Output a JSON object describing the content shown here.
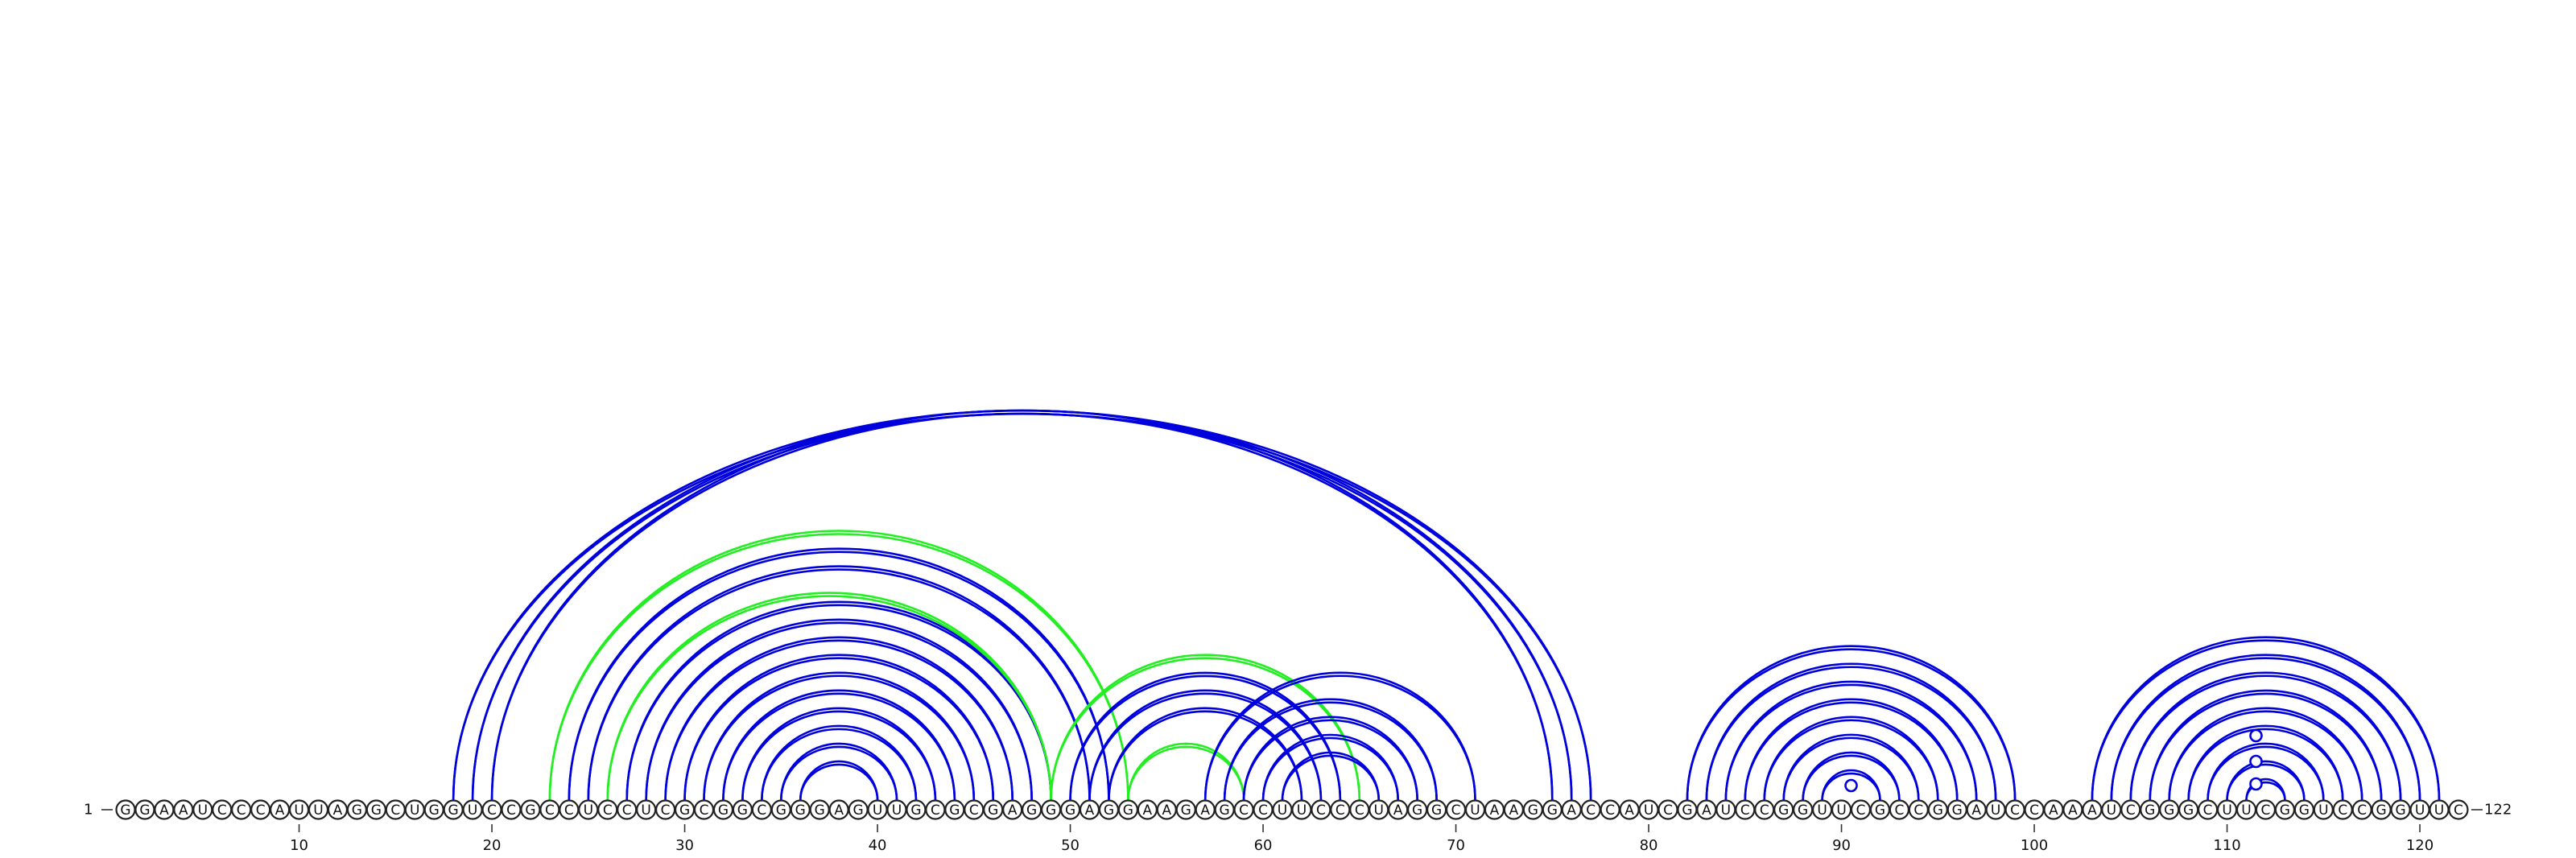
{
  "sequence": "GGAAUCCCAUUAGGCUGGUCCGCCUCCUCGCGGCGGGAGUUGCGCGAGGGAGGAAGAGCCUUCCCUAGGCUAAGGACCAUCGAUCCGGUUCGCCGGAUCCAAAUCGGGCUUCGGUCCGGUUC",
  "start_label": "1",
  "end_label": "122",
  "ticks": [
    "10",
    "20",
    "30",
    "40",
    "50",
    "60",
    "70",
    "80",
    "90",
    "100",
    "110",
    "120"
  ],
  "colors": {
    "primary_arc": "#0000dd",
    "pseudoknot_arc": "#22ee22",
    "outline": "#222222"
  },
  "arc_groups": [
    {
      "color": "primary_arc",
      "pairs": [
        [
          18,
          77
        ],
        [
          19,
          76
        ],
        [
          20,
          75
        ]
      ]
    },
    {
      "color": "primary_arc",
      "pairs": [
        [
          24,
          52
        ],
        [
          25,
          51
        ],
        [
          27,
          49
        ],
        [
          28,
          48
        ],
        [
          29,
          47
        ],
        [
          30,
          46
        ],
        [
          31,
          45
        ],
        [
          32,
          44
        ],
        [
          33,
          43
        ],
        [
          34,
          42
        ],
        [
          35,
          41
        ],
        [
          36,
          40
        ]
      ]
    },
    {
      "color": "pseudoknot_arc",
      "pairs": [
        [
          23,
          53
        ],
        [
          26,
          49
        ],
        [
          49,
          65
        ],
        [
          53,
          59
        ]
      ]
    },
    {
      "color": "primary_arc",
      "pairs": [
        [
          50,
          64
        ],
        [
          51,
          63
        ],
        [
          52,
          62
        ],
        [
          57,
          71
        ],
        [
          58,
          69
        ],
        [
          59,
          68
        ],
        [
          60,
          67
        ],
        [
          61,
          66
        ]
      ]
    },
    {
      "color": "primary_arc",
      "pairs": [
        [
          82,
          99
        ],
        [
          83,
          98
        ],
        [
          84,
          97
        ],
        [
          85,
          96
        ],
        [
          86,
          95
        ],
        [
          87,
          94
        ],
        [
          88,
          93
        ],
        [
          89,
          92
        ]
      ]
    },
    {
      "color": "primary_arc",
      "pairs": [
        [
          103,
          121
        ],
        [
          104,
          120
        ],
        [
          105,
          119
        ],
        [
          106,
          118
        ],
        [
          107,
          117
        ],
        [
          108,
          116
        ],
        [
          109,
          115
        ],
        [
          110,
          114
        ],
        [
          111,
          113
        ]
      ]
    }
  ],
  "loop_markers": [
    90.5,
    111.5,
    111.5,
    111.5
  ]
}
